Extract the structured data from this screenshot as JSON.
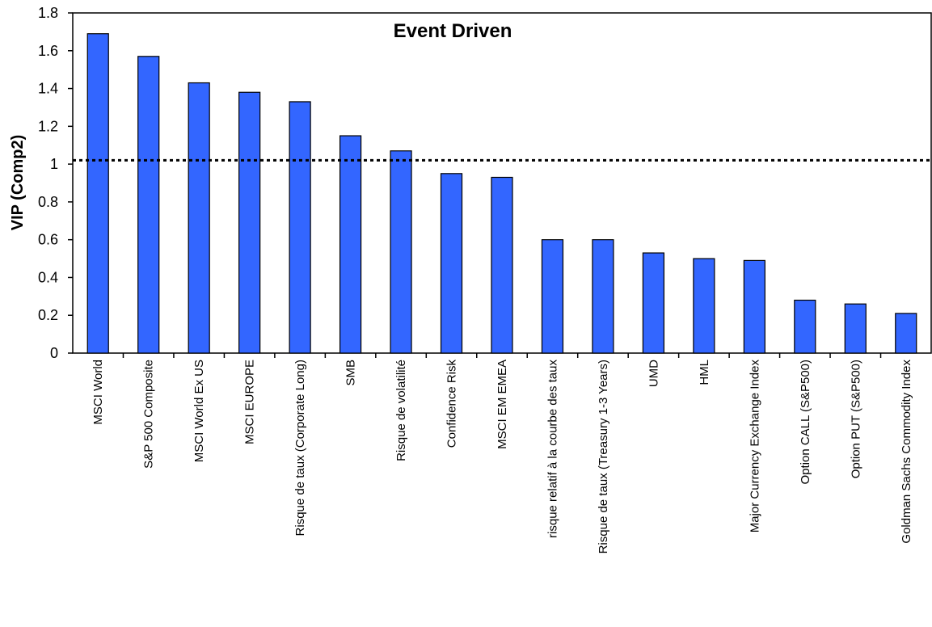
{
  "chart_data": {
    "type": "bar",
    "title": "Event Driven",
    "xlabel": "",
    "ylabel": "VIP (Comp2)",
    "ylim": [
      0,
      1.8
    ],
    "yticks": [
      "0",
      "0.2",
      "0.4",
      "0.6",
      "0.8",
      "1",
      "1.2",
      "1.4",
      "1.6",
      "1.8"
    ],
    "grid": false,
    "legend": "none",
    "bar_color": "#3366FF",
    "bar_edge_color": "#000000",
    "reference_line": {
      "y": 1.02,
      "style": "dotted",
      "color": "#000000"
    },
    "categories": [
      "MSCI World",
      "S&P 500 Composite",
      "MSCI World Ex US",
      "MSCI EUROPE",
      "Risque de taux (Corporate Long)",
      "SMB",
      "Risque de volatilité",
      "Confidence Risk",
      "MSCI EM EMEA",
      "risque relatif à la courbe des taux",
      "Risque de taux (Treasury 1-3 Years)",
      "UMD",
      "HML",
      "Major Currency Exchange Index",
      "Option CALL (S&P500)",
      "Option PUT (S&P500)",
      "Goldman Sachs Commodity Index"
    ],
    "values": [
      1.69,
      1.57,
      1.43,
      1.38,
      1.33,
      1.15,
      1.07,
      0.95,
      0.93,
      0.6,
      0.6,
      0.53,
      0.5,
      0.49,
      0.28,
      0.26,
      0.21
    ]
  }
}
